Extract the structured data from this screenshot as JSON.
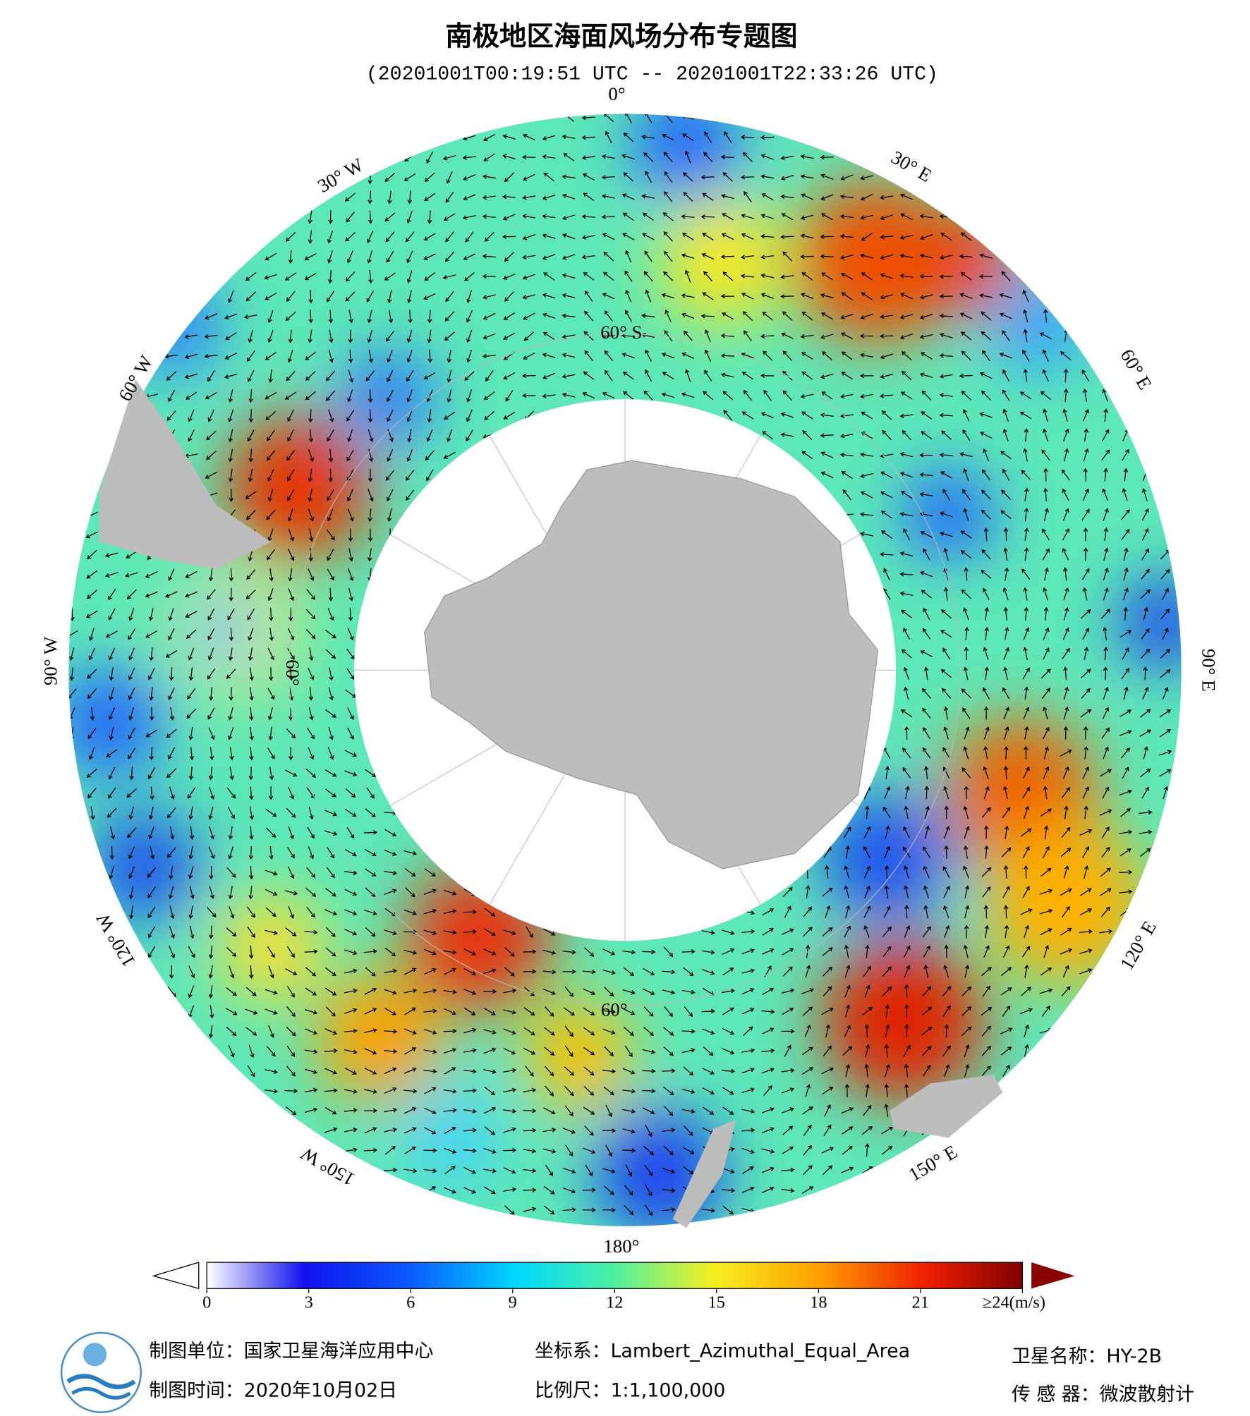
{
  "header": {
    "title": "南极地区海面风场分布专题图",
    "subtitle": "(20201001T00:19:51 UTC -- 20201001T22:33:26 UTC)"
  },
  "map": {
    "lon_labels": [
      "0°",
      "30° E",
      "60° E",
      "90° E",
      "120° E",
      "150° E",
      "180°",
      "150° W",
      "120° W",
      "90° W",
      "60° W",
      "30° W"
    ],
    "lat_labels": [
      "60° S",
      "60°",
      "60°"
    ]
  },
  "colorbar": {
    "range": [
      0,
      24
    ],
    "ticks": [
      0,
      3,
      6,
      9,
      12,
      15,
      18,
      21,
      {
        "value": 24,
        "label": "≥24(m/s)"
      }
    ]
  },
  "footer": {
    "unit": "制图单位：国家卫星海洋应用中心",
    "time": "制图时间：2020年10月02日",
    "crs": "坐标系：Lambert_Azimuthal_Equal_Area",
    "scale": "比例尺：1:1,100,000",
    "satellite": "卫星名称：HY-2B",
    "sensor": "传 感 器：微波散射计"
  }
}
